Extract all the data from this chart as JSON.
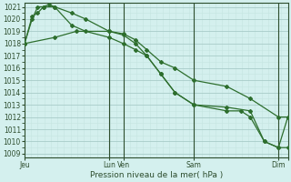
{
  "xlabel": "Pression niveau de la mer( hPa )",
  "ylim": [
    1009,
    1021
  ],
  "yticks": [
    1009,
    1010,
    1011,
    1012,
    1013,
    1014,
    1015,
    1016,
    1017,
    1018,
    1019,
    1020,
    1021
  ],
  "background_color": "#d4f0ee",
  "grid_major_color": "#a8ccc8",
  "grid_minor_color": "#c4e4e0",
  "line_color": "#2d6e2d",
  "xtick_positions": [
    0,
    90,
    105,
    180,
    270,
    280
  ],
  "xtick_labels": [
    "Jeu",
    "Lun",
    "Ven",
    "Sam",
    "Dim",
    ""
  ],
  "xlim": [
    0,
    280
  ],
  "vlines": [
    90,
    105,
    180,
    270
  ],
  "line1_x": [
    0,
    8,
    14,
    20,
    26,
    32,
    50,
    65,
    90,
    105,
    118,
    130,
    145,
    160,
    180,
    215,
    240,
    270,
    280
  ],
  "line1_y": [
    1018,
    1020,
    1021,
    1021,
    1021.2,
    1021,
    1020.5,
    1020,
    1019,
    1018.8,
    1018.3,
    1017.5,
    1016.5,
    1016,
    1015,
    1014.5,
    1013.5,
    1012,
    1012
  ],
  "line2_x": [
    0,
    8,
    14,
    20,
    32,
    50,
    65,
    90,
    105,
    118,
    130,
    145,
    160,
    180,
    215,
    240,
    255,
    270,
    280
  ],
  "line2_y": [
    1018,
    1020.2,
    1020.5,
    1021,
    1021,
    1019.5,
    1019,
    1018.5,
    1018,
    1017.5,
    1017,
    1015.5,
    1014,
    1013,
    1012.8,
    1012.5,
    1010,
    1009.5,
    1009.5
  ],
  "line3_x": [
    0,
    32,
    55,
    90,
    105,
    118,
    130,
    145,
    160,
    180,
    215,
    230,
    240,
    255,
    270,
    280
  ],
  "line3_y": [
    1018,
    1018.5,
    1019,
    1019,
    1018.7,
    1018,
    1017,
    1015.5,
    1014,
    1013,
    1012.5,
    1012.5,
    1012,
    1010,
    1009.5,
    1012
  ],
  "marker": "D",
  "markersize": 2.0,
  "linewidth": 0.9
}
